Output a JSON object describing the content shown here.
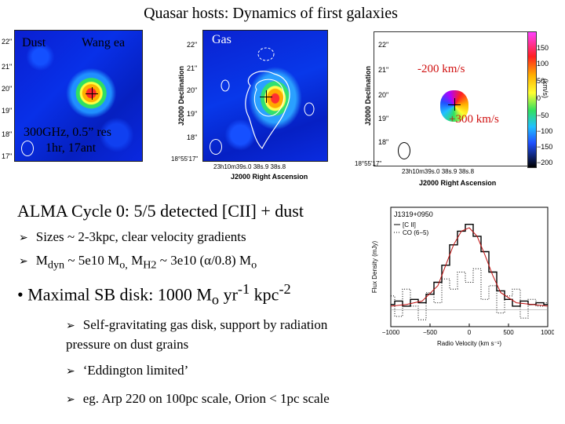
{
  "title": "Quasar hosts: Dynamics of first galaxies",
  "dust_panel": {
    "label_left": "Dust",
    "label_right": "Wang ea",
    "yticks": [
      "22\"",
      "21\"",
      "20\"",
      "19\"",
      "18\"",
      "17\""
    ],
    "note_line1": "300GHz, 0.5” res",
    "note_line2": "1hr, 17ant"
  },
  "gas_panel": {
    "label": "Gas",
    "yticks": [
      "22\"",
      "21\"",
      "20\"",
      "19\"",
      "18\"",
      "18°55'17\""
    ],
    "ylabel": "J2000 Declination",
    "xticks": "23h10m39s.0   38s.9   38s.8",
    "xlabel": "J2000 Right Ascension"
  },
  "velocity_panel": {
    "neg_label": "-200 km/s",
    "pos_label": "+300 km/s",
    "yticks": [
      "22\"",
      "21\"",
      "20\"",
      "19\"",
      "18\"",
      "18°55'17\""
    ],
    "ylabel": "J2000 Declination",
    "xticks": "23h10m39s.0   38s.9   38s.8",
    "xlabel": "J2000 Right Ascension",
    "colorbar_ticks": [
      "150",
      "100",
      "50",
      "0",
      "−50",
      "−100",
      "−150",
      "−200"
    ],
    "colorbar_unit": "(km/s)"
  },
  "alma_heading": "ALMA Cycle 0: 5/5 detected [CII] + dust",
  "bullets": [
    {
      "text": "Sizes ~ 2-3kpc, clear velocity gradients"
    },
    {
      "pre": "M",
      "sub1": "dyn",
      "mid1": " ~ 5e10 M",
      "sub2": "o,",
      "mid2": " M",
      "sub3": "H2",
      "post": " ~ 3e10 (α/0.8) M",
      "sub4": "o"
    }
  ],
  "maximal": {
    "pre": "• Maximal SB disk: 1000 M",
    "sub": "o",
    "mid": " yr",
    "sup": "-1",
    "post": " kpc",
    "sup2": "-2"
  },
  "sub_bullets": [
    {
      "line1": "Self-gravitating gas disk, support by radiation",
      "line2": "pressure on dust grains"
    },
    {
      "line1": "‘Eddington limited’"
    },
    {
      "line1": "eg. Arp 220 on 100pc scale, Orion < 1pc scale"
    }
  ],
  "chart_data": {
    "type": "line",
    "title": "J1319+0950",
    "xlabel": "Radio Velocity (km s⁻¹)",
    "ylabel": "Flux Density (mJy)",
    "xlim": [
      -1000,
      1000
    ],
    "xticks": [
      "−1000",
      "−500",
      "0",
      "500",
      "1000"
    ],
    "legend": [
      "[C II]",
      "CO (6−5)"
    ],
    "legend_position": "top-left",
    "series": [
      {
        "name": "[C II]",
        "style": "step",
        "x": [
          -1000,
          -900,
          -800,
          -700,
          -600,
          -500,
          -400,
          -300,
          -200,
          -100,
          0,
          100,
          200,
          300,
          400,
          500,
          600,
          700,
          800,
          900,
          1000
        ],
        "values": [
          0.3,
          0.5,
          0.2,
          0.6,
          0.4,
          0.9,
          1.6,
          2.6,
          3.8,
          4.6,
          5.0,
          4.3,
          3.4,
          2.2,
          1.1,
          0.6,
          0.2,
          0.5,
          0.3,
          0.4,
          0.3
        ]
      },
      {
        "name": "CO (6−5)",
        "style": "dotted-step",
        "x": [
          -1000,
          -900,
          -800,
          -700,
          -600,
          -500,
          -400,
          -300,
          -200,
          -100,
          0,
          100,
          200,
          300,
          400,
          500,
          600,
          700,
          800,
          900,
          1000
        ],
        "values": [
          0.8,
          -0.4,
          1.2,
          0.2,
          -0.6,
          1.0,
          0.4,
          1.8,
          1.2,
          2.2,
          1.6,
          2.4,
          0.6,
          1.4,
          -0.2,
          0.8,
          1.2,
          -0.5,
          0.6,
          0.2,
          0.4
        ]
      },
      {
        "name": "[C II] fit",
        "style": "gaussian",
        "x": [
          -1000,
          -800,
          -600,
          -400,
          -300,
          -200,
          -100,
          0,
          100,
          200,
          300,
          400,
          600,
          800,
          1000
        ],
        "values": [
          0.2,
          0.3,
          0.5,
          1.4,
          2.6,
          3.8,
          4.6,
          4.8,
          4.3,
          3.2,
          2.0,
          1.0,
          0.4,
          0.3,
          0.2
        ]
      }
    ]
  }
}
